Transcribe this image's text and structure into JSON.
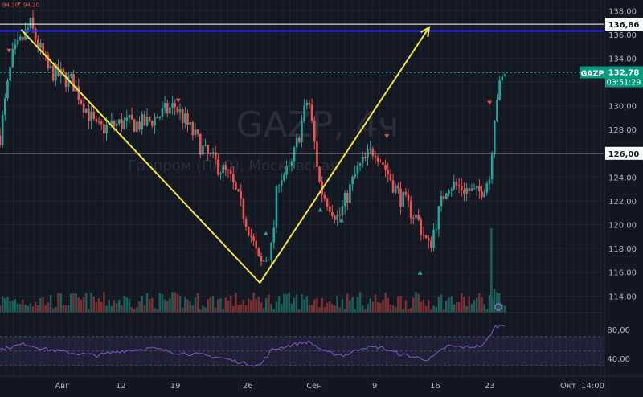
{
  "chart_data": {
    "type": "candlestick",
    "symbol": "GAZP",
    "watermark_line1": "GAZP, 4ч",
    "watermark_line2": "Газпром (ПАО), Московская",
    "top_left_values": [
      "94.30",
      "94.20"
    ],
    "price_axis": {
      "ylim": [
        112.6,
        138.9
      ],
      "ticks": [
        "138,00",
        "136,00",
        "134,00",
        "132,00",
        "130,00",
        "128,00",
        "126,00",
        "124,00",
        "122,00",
        "120,00",
        "118,00",
        "116,00",
        "114,00"
      ],
      "tick_values": [
        138,
        136,
        134,
        132,
        130,
        128,
        126,
        124,
        122,
        120,
        118,
        116,
        114
      ]
    },
    "time_axis": {
      "labels": [
        "Авг",
        "12",
        "19",
        "26",
        "Сен",
        "9",
        "16",
        "23",
        "Окт",
        "14:00"
      ],
      "positions": [
        0.103,
        0.2,
        0.29,
        0.41,
        0.52,
        0.62,
        0.72,
        0.81,
        0.94,
        1.0
      ]
    },
    "levels": [
      {
        "name": "resistance",
        "value": 136.86,
        "label": "136,86",
        "color": "#ffffff"
      },
      {
        "name": "support",
        "value": 126.0,
        "label": "126,00",
        "color": "#ffffff"
      },
      {
        "name": "blue-level",
        "value": 136.3,
        "color": "#2d2dff"
      }
    ],
    "last_price": {
      "symbol": "GAZP",
      "price": "132,78",
      "countdown": "03:51:29",
      "value": 132.78,
      "color": "#089981"
    },
    "drawing_v": {
      "color": "#f5e642",
      "points": [
        {
          "date": "Jul-27",
          "price": 136.4
        },
        {
          "date": "Aug-26",
          "price": 115.1
        },
        {
          "date": "Sep-16",
          "price": 136.6
        }
      ]
    },
    "price_anchors": [
      {
        "t": 0.0,
        "v": 127.5
      },
      {
        "t": 0.02,
        "v": 134.0
      },
      {
        "t": 0.05,
        "v": 136.8
      },
      {
        "t": 0.08,
        "v": 133.0
      },
      {
        "t": 0.12,
        "v": 132.0
      },
      {
        "t": 0.16,
        "v": 128.0
      },
      {
        "t": 0.2,
        "v": 128.5
      },
      {
        "t": 0.24,
        "v": 128.5
      },
      {
        "t": 0.29,
        "v": 130.0
      },
      {
        "t": 0.34,
        "v": 126.0
      },
      {
        "t": 0.38,
        "v": 124.0
      },
      {
        "t": 0.41,
        "v": 120.0
      },
      {
        "t": 0.43,
        "v": 116.5
      },
      {
        "t": 0.45,
        "v": 118.0
      },
      {
        "t": 0.46,
        "v": 124.0
      },
      {
        "t": 0.48,
        "v": 124.5
      },
      {
        "t": 0.51,
        "v": 130.8
      },
      {
        "t": 0.53,
        "v": 123.0
      },
      {
        "t": 0.56,
        "v": 120.5
      },
      {
        "t": 0.59,
        "v": 124.5
      },
      {
        "t": 0.62,
        "v": 126.5
      },
      {
        "t": 0.66,
        "v": 122.5
      },
      {
        "t": 0.69,
        "v": 120.5
      },
      {
        "t": 0.71,
        "v": 118.0
      },
      {
        "t": 0.72,
        "v": 120.0
      },
      {
        "t": 0.74,
        "v": 123.5
      },
      {
        "t": 0.77,
        "v": 123.0
      },
      {
        "t": 0.79,
        "v": 122.5
      },
      {
        "t": 0.81,
        "v": 124.0
      },
      {
        "t": 0.82,
        "v": 130.5
      },
      {
        "t": 0.835,
        "v": 132.78
      }
    ],
    "rsi": {
      "ylim": [
        22,
        92
      ],
      "ticks": [
        "80,00",
        "40,00"
      ],
      "tick_values": [
        80,
        40
      ],
      "band": [
        30,
        70
      ],
      "color": "#7e57c2",
      "anchors": [
        {
          "t": 0.0,
          "v": 52
        },
        {
          "t": 0.04,
          "v": 60
        },
        {
          "t": 0.08,
          "v": 52
        },
        {
          "t": 0.12,
          "v": 47
        },
        {
          "t": 0.16,
          "v": 44
        },
        {
          "t": 0.2,
          "v": 50
        },
        {
          "t": 0.25,
          "v": 54
        },
        {
          "t": 0.29,
          "v": 48
        },
        {
          "t": 0.33,
          "v": 45
        },
        {
          "t": 0.37,
          "v": 40
        },
        {
          "t": 0.41,
          "v": 32
        },
        {
          "t": 0.43,
          "v": 30
        },
        {
          "t": 0.45,
          "v": 52
        },
        {
          "t": 0.48,
          "v": 58
        },
        {
          "t": 0.51,
          "v": 63
        },
        {
          "t": 0.54,
          "v": 48
        },
        {
          "t": 0.57,
          "v": 44
        },
        {
          "t": 0.6,
          "v": 55
        },
        {
          "t": 0.63,
          "v": 55
        },
        {
          "t": 0.66,
          "v": 46
        },
        {
          "t": 0.69,
          "v": 41
        },
        {
          "t": 0.71,
          "v": 38
        },
        {
          "t": 0.74,
          "v": 57
        },
        {
          "t": 0.77,
          "v": 55
        },
        {
          "t": 0.8,
          "v": 58
        },
        {
          "t": 0.82,
          "v": 84
        },
        {
          "t": 0.835,
          "v": 86
        }
      ]
    },
    "up_color": "#26a69a",
    "down_color": "#ef5350"
  }
}
